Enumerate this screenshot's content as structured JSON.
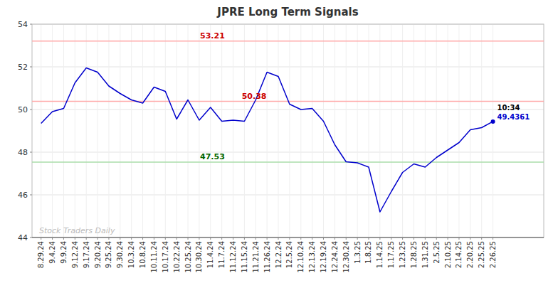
{
  "chart_data": {
    "type": "line",
    "title": "JPRE Long Term Signals",
    "categories": [
      "8.29.24",
      "9.4.24",
      "9.9.24",
      "9.12.24",
      "9.17.24",
      "9.20.24",
      "9.25.24",
      "9.30.24",
      "10.3.24",
      "10.8.24",
      "10.11.24",
      "10.17.24",
      "10.22.24",
      "10.25.24",
      "10.30.24",
      "11.4.24",
      "11.7.24",
      "11.12.24",
      "11.15.24",
      "11.21.24",
      "11.26.24",
      "12.2.24",
      "12.5.24",
      "12.10.24",
      "12.13.24",
      "12.19.24",
      "12.24.24",
      "12.30.24",
      "1.3.25",
      "1.8.25",
      "1.14.25",
      "1.17.25",
      "1.23.25",
      "1.28.25",
      "1.31.25",
      "2.5.25",
      "2.10.25",
      "2.14.25",
      "2.20.25",
      "2.25.25",
      "2.26.25"
    ],
    "values": [
      49.35,
      49.9,
      50.05,
      51.25,
      51.95,
      51.75,
      51.1,
      50.75,
      50.45,
      50.3,
      51.05,
      50.85,
      49.55,
      50.45,
      49.5,
      50.1,
      49.45,
      49.5,
      49.45,
      50.45,
      51.75,
      51.55,
      50.25,
      50.0,
      50.05,
      49.45,
      48.35,
      47.55,
      47.5,
      47.3,
      45.2,
      46.15,
      47.05,
      47.45,
      47.3,
      47.75,
      48.1,
      48.45,
      49.05,
      49.15,
      49.4361
    ],
    "color": "#0000cc",
    "ylim": [
      44,
      54
    ],
    "yticks": [
      44,
      46,
      48,
      50,
      52,
      54
    ],
    "grid": true,
    "reference_lines": [
      {
        "value": 53.21,
        "label": "53.21",
        "color": "#ffaaaa",
        "label_color": "#cc0000"
      },
      {
        "value": 50.38,
        "label": "50.38",
        "color": "#ffaaaa",
        "label_color": "#cc0000"
      },
      {
        "value": 47.53,
        "label": "47.53",
        "color": "#aaddaa",
        "label_color": "#006600"
      }
    ],
    "annotations": [
      {
        "text": "10:34",
        "color": "#000000"
      },
      {
        "text": "49.4361",
        "color": "#0000cc"
      },
      {
        "text": "Stock Traders Daily",
        "color": "#bbbbbb"
      }
    ]
  }
}
